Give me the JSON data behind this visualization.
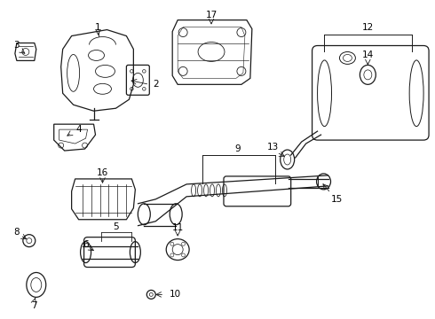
{
  "bg_color": "#ffffff",
  "line_color": "#1a1a1a",
  "label_color": "#000000",
  "lw": 0.9,
  "fs": 7.5
}
